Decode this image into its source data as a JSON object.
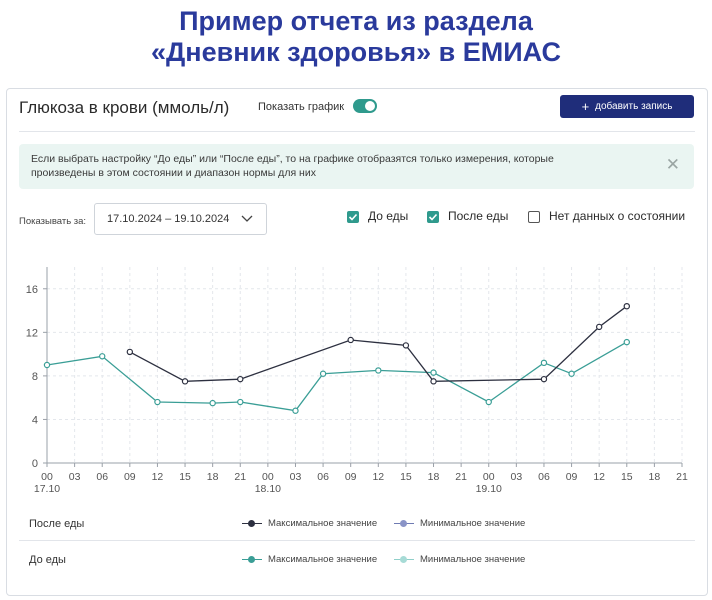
{
  "slide": {
    "title_line1": "Пример отчета из раздела",
    "title_line2": "«Дневник здоровья» в ЕМИАС"
  },
  "header": {
    "title": "Глюкоза в крови (ммоль/л)",
    "toggle_label": "Показать график",
    "toggle_on": true,
    "add_button": "добавить запись"
  },
  "info": {
    "text": "Если выбрать настройку “До еды” или “После еды”, то на графике отобразятся только измерения, которые произведены в этом состоянии и диапазон нормы для них"
  },
  "filters": {
    "period_label": "Показывать за:",
    "date_range": "17.10.2024 – 19.10.2024",
    "checkboxes": [
      {
        "label": "До еды",
        "checked": true
      },
      {
        "label": "После еды",
        "checked": true
      },
      {
        "label": "Нет данных о состоянии",
        "checked": false
      }
    ]
  },
  "colors": {
    "after_meal": "#2d3040",
    "before_meal": "#3a9e96",
    "accent": "#2f9a8d",
    "button": "#1f2d7a"
  },
  "chart_data": {
    "type": "line",
    "ylim": [
      0,
      18
    ],
    "y_ticks": [
      0,
      4,
      8,
      12,
      16
    ],
    "x_unit": "hours since 17.10 00:00",
    "x_ticks": [
      "00",
      "03",
      "06",
      "09",
      "12",
      "15",
      "18",
      "21",
      "00",
      "03",
      "06",
      "09",
      "12",
      "15",
      "18",
      "21",
      "00",
      "03",
      "06",
      "09",
      "12",
      "15",
      "18",
      "21"
    ],
    "x_date_labels": [
      {
        "at_tick": 0,
        "label": "17.10"
      },
      {
        "at_tick": 8,
        "label": "18.10"
      },
      {
        "at_tick": 16,
        "label": "19.10"
      }
    ],
    "series": [
      {
        "name": "После еды",
        "x": [
          9,
          15,
          21,
          33,
          39,
          42,
          54,
          60,
          63
        ],
        "y": [
          10.2,
          7.5,
          7.7,
          11.3,
          10.8,
          7.5,
          7.7,
          12.5,
          14.4
        ]
      },
      {
        "name": "До еды",
        "x": [
          0,
          6,
          12,
          18,
          21,
          27,
          30,
          36,
          42,
          48,
          54,
          57,
          63
        ],
        "y": [
          9.0,
          9.8,
          5.6,
          5.5,
          5.6,
          4.8,
          8.2,
          8.5,
          8.3,
          5.6,
          9.2,
          8.2,
          11.1
        ]
      }
    ]
  },
  "legend": {
    "rows": [
      {
        "name": "После еды",
        "max": "Максимальное значение",
        "min": "Минимальное значение"
      },
      {
        "name": "До еды",
        "max": "Максимальное значение",
        "min": "Минимальное значение"
      }
    ]
  }
}
